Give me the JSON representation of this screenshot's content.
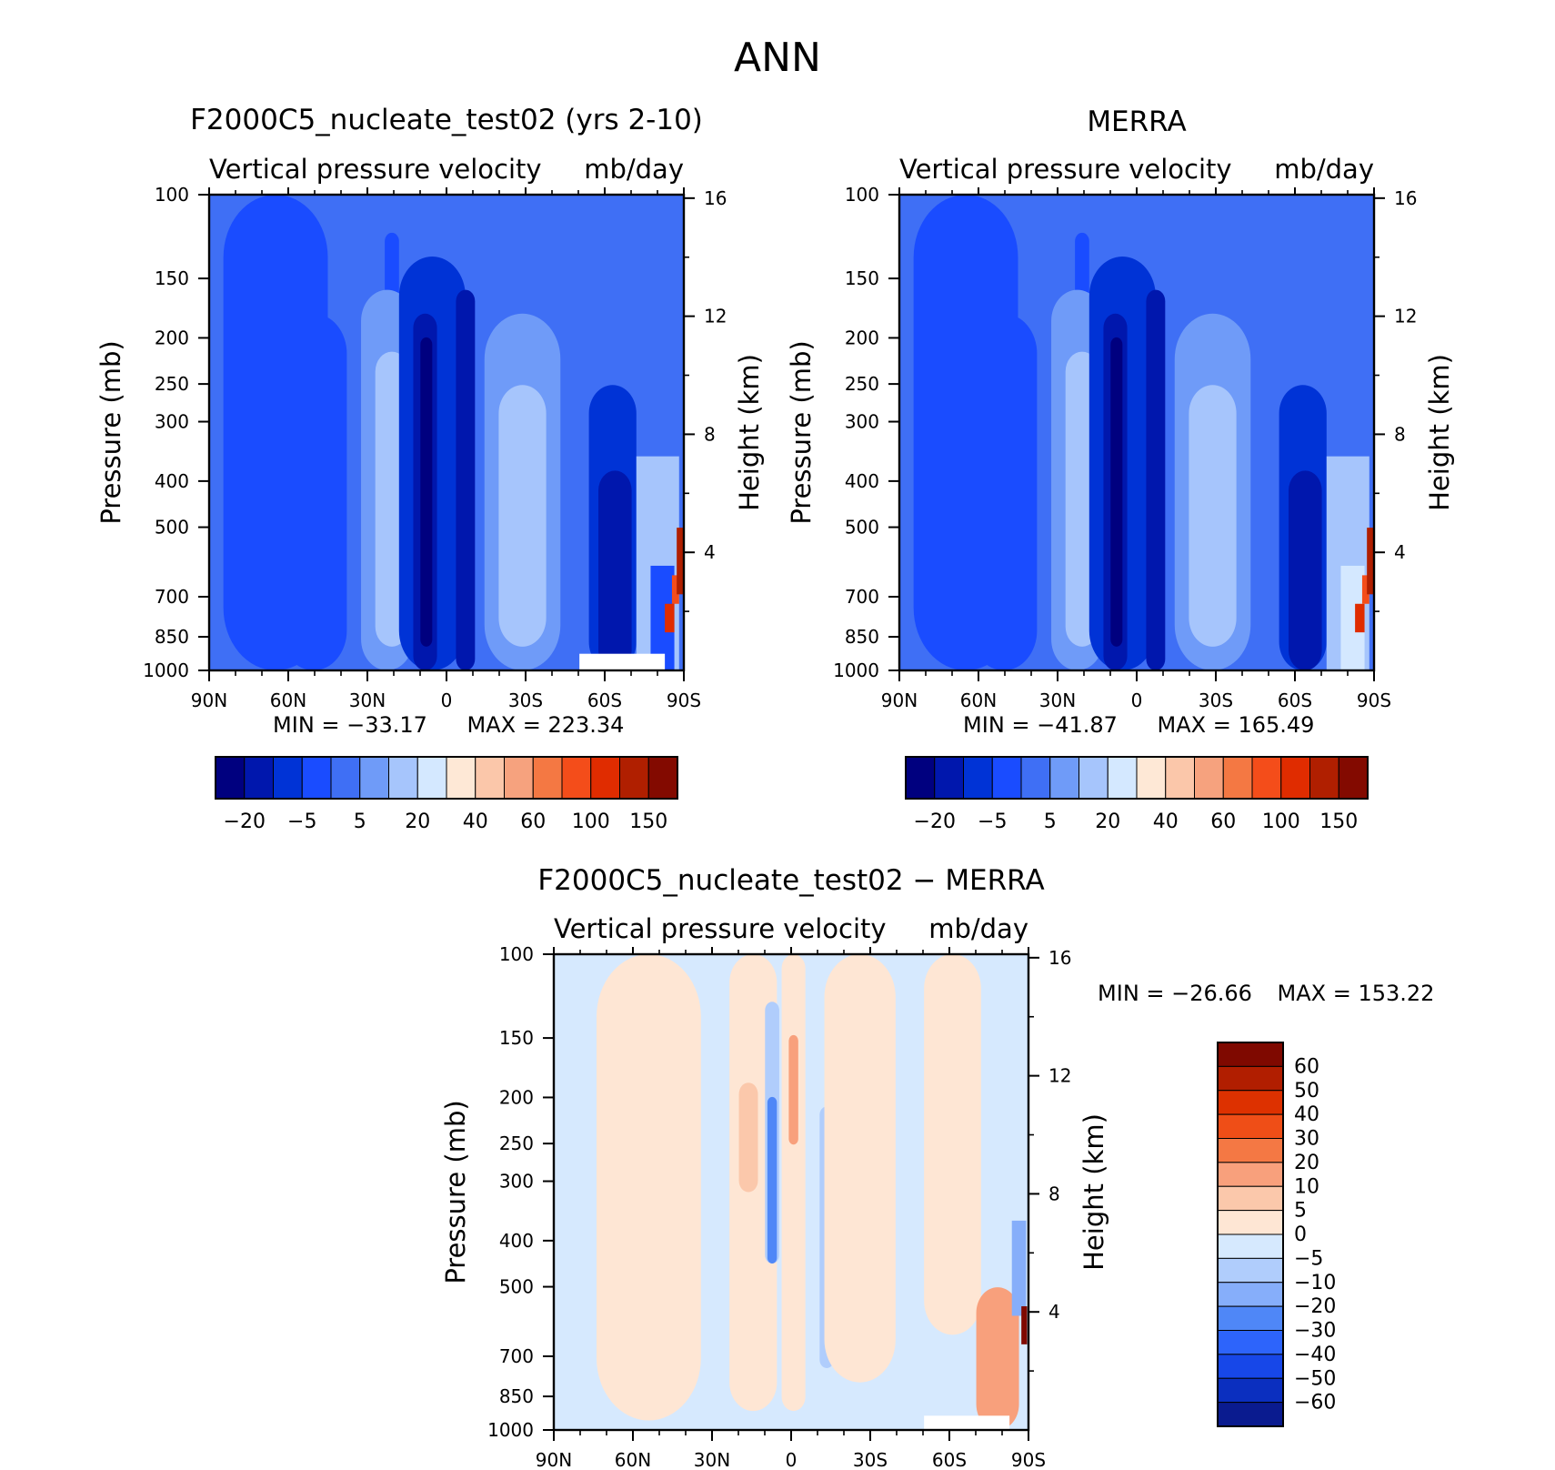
{
  "figure": {
    "title": "ANN",
    "colors": {
      "abs_palette": [
        "#00007f",
        "#0017ad",
        "#0033d6",
        "#1a4cff",
        "#3f6ff5",
        "#6f9bf8",
        "#a6c5fc",
        "#d4e8ff",
        "#fee8d6",
        "#fbc7aa",
        "#f6a27e",
        "#f47843",
        "#f44d1a",
        "#e02c00",
        "#b01f00",
        "#830a00"
      ],
      "diff_palette": [
        "#0a1b8f",
        "#0b2fbf",
        "#1747e8",
        "#2d64fb",
        "#4f87f7",
        "#86aefa",
        "#b0cdfc",
        "#d6e9fe",
        "#fee6d4",
        "#fbc8ab",
        "#f8a07c",
        "#f47844",
        "#ef4e17",
        "#dd3100",
        "#b11e00",
        "#7f0900"
      ]
    },
    "panels": [
      {
        "id": "test",
        "title": "F2000C5_nucleate_test02 (yrs 2-10)",
        "variable": "Vertical pressure velocity",
        "units": "mb/day",
        "min_label": "MIN = −33.17",
        "max_label": "MAX = 223.34"
      },
      {
        "id": "obs",
        "title": "MERRA",
        "variable": "Vertical pressure velocity",
        "units": "mb/day",
        "min_label": "MIN = −41.87",
        "max_label": "MAX = 165.49"
      },
      {
        "id": "diff",
        "title": "F2000C5_nucleate_test02 − MERRA",
        "variable": "Vertical pressure velocity",
        "units": "mb/day",
        "min_label": "MIN = −26.66",
        "max_label": "MAX = 153.22"
      }
    ],
    "colorbar_abs_labels": [
      "−20",
      "−5",
      "5",
      "20",
      "40",
      "60",
      "100",
      "150"
    ],
    "colorbar_diff_labels": [
      "60",
      "50",
      "40",
      "30",
      "20",
      "10",
      "5",
      "0",
      "−5",
      "−10",
      "−20",
      "−30",
      "−40",
      "−50",
      "−60"
    ]
  },
  "chart_data": [
    {
      "type": "heatmap",
      "title": "F2000C5_nucleate_test02 (yrs 2-10)",
      "subtitle": "Vertical pressure velocity   mb/day",
      "xlabel": "",
      "ylabel": "Pressure (mb)",
      "y2label": "Height (km)",
      "x_ticks": [
        "90N",
        "60N",
        "30N",
        "0",
        "30S",
        "60S",
        "90S"
      ],
      "y_ticks": [
        100,
        150,
        200,
        250,
        300,
        400,
        500,
        700,
        850,
        1000
      ],
      "y2_ticks": [
        4,
        8,
        12,
        16
      ],
      "ylim": [
        1000,
        100
      ],
      "y_scale": "log",
      "min": -33.17,
      "max": 223.34,
      "contour_levels": [
        -40,
        -20,
        -10,
        -5,
        0,
        5,
        10,
        20,
        30,
        40,
        50,
        60,
        80,
        100,
        120,
        150,
        200
      ],
      "field_profile": {
        "lat": [
          90,
          75,
          60,
          45,
          30,
          15,
          5,
          0,
          -5,
          -15,
          -30,
          -45,
          -60,
          -75,
          -90
        ],
        "omega_approx": [
          -8,
          -10,
          -14,
          -9,
          18,
          14,
          -26,
          -8,
          -22,
          4,
          28,
          6,
          -18,
          10,
          200
        ]
      }
    },
    {
      "type": "heatmap",
      "title": "MERRA",
      "subtitle": "Vertical pressure velocity   mb/day",
      "xlabel": "",
      "ylabel": "Pressure (mb)",
      "y2label": "Height (km)",
      "x_ticks": [
        "90N",
        "60N",
        "30N",
        "0",
        "30S",
        "60S",
        "90S"
      ],
      "y_ticks": [
        100,
        150,
        200,
        250,
        300,
        400,
        500,
        700,
        850,
        1000
      ],
      "y2_ticks": [
        4,
        8,
        12,
        16
      ],
      "ylim": [
        1000,
        100
      ],
      "y_scale": "log",
      "min": -41.87,
      "max": 165.49,
      "contour_levels": [
        -40,
        -20,
        -10,
        -5,
        0,
        5,
        10,
        20,
        30,
        40,
        50,
        60,
        80,
        100,
        120,
        150,
        200
      ],
      "field_profile": {
        "lat": [
          90,
          75,
          60,
          45,
          30,
          15,
          5,
          0,
          -5,
          -15,
          -30,
          -45,
          -60,
          -75,
          -90
        ],
        "omega_approx": [
          -6,
          6,
          -16,
          -10,
          20,
          16,
          -22,
          -28,
          -14,
          4,
          26,
          8,
          -18,
          -20,
          160
        ]
      }
    },
    {
      "type": "heatmap",
      "title": "F2000C5_nucleate_test02 − MERRA",
      "subtitle": "Vertical pressure velocity   mb/day",
      "xlabel": "",
      "ylabel": "Pressure (mb)",
      "y2label": "Height (km)",
      "x_ticks": [
        "90N",
        "60N",
        "30N",
        "0",
        "30S",
        "60S",
        "90S"
      ],
      "y_ticks": [
        100,
        150,
        200,
        250,
        300,
        400,
        500,
        700,
        850,
        1000
      ],
      "y2_ticks": [
        4,
        8,
        12,
        16
      ],
      "ylim": [
        1000,
        100
      ],
      "y_scale": "log",
      "min": -26.66,
      "max": 153.22,
      "contour_levels": [
        -60,
        -50,
        -40,
        -30,
        -20,
        -10,
        -5,
        0,
        5,
        10,
        20,
        30,
        40,
        50,
        60
      ],
      "field_profile": {
        "lat": [
          90,
          75,
          60,
          45,
          30,
          15,
          5,
          0,
          -5,
          -15,
          -30,
          -45,
          -60,
          -75,
          -90
        ],
        "omega_approx": [
          -2,
          2,
          2,
          -2,
          2,
          6,
          -12,
          8,
          -4,
          -2,
          2,
          -2,
          2,
          12,
          60
        ]
      }
    }
  ]
}
